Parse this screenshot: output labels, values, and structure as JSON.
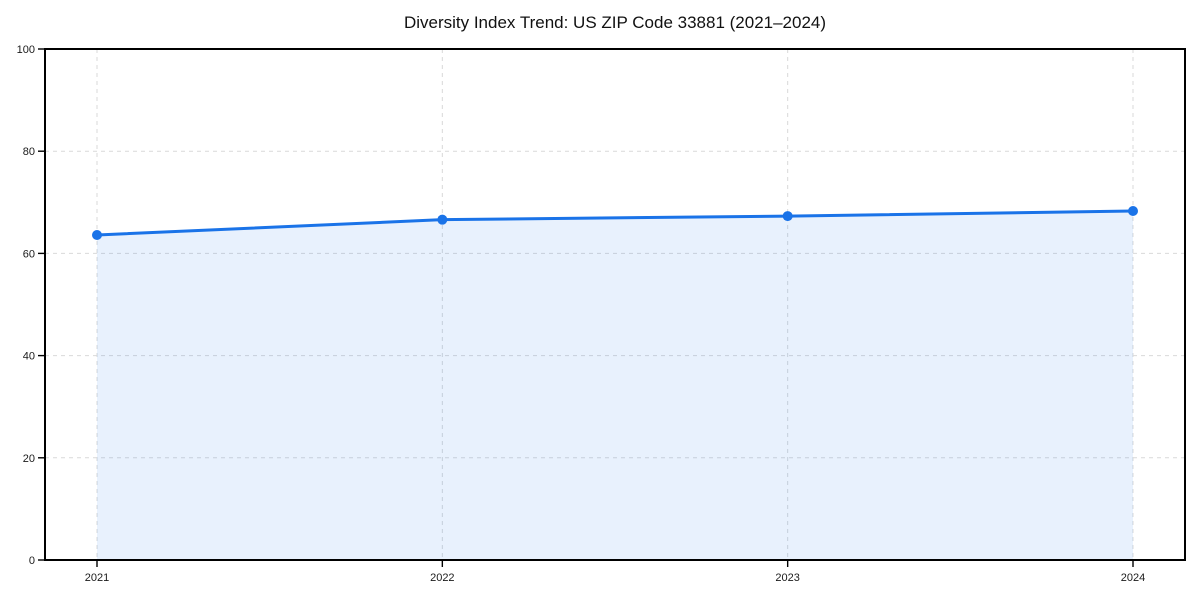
{
  "chart_data": {
    "type": "line",
    "title": "Diversity Index Trend: US ZIP Code 33881 (2021–2024)",
    "x": [
      "2021",
      "2022",
      "2023",
      "2024"
    ],
    "series": [
      {
        "name": "Diversity Index",
        "values": [
          63.6,
          66.6,
          67.3,
          68.3
        ]
      }
    ],
    "xlabel": "",
    "ylabel": "",
    "ylim": [
      0,
      100
    ],
    "yticks": [
      0,
      20,
      40,
      60,
      80,
      100
    ],
    "grid": true,
    "grid_style": "dashed",
    "legend": false,
    "colors": {
      "line": "#1a73e8",
      "marker": "#1a73e8",
      "fill": "rgba(26,115,232,0.10)",
      "grid": "#d9d9d9",
      "frame": "#000000",
      "tick_label": "#1a1a1a",
      "title": "#111111",
      "background": "#ffffff"
    }
  }
}
